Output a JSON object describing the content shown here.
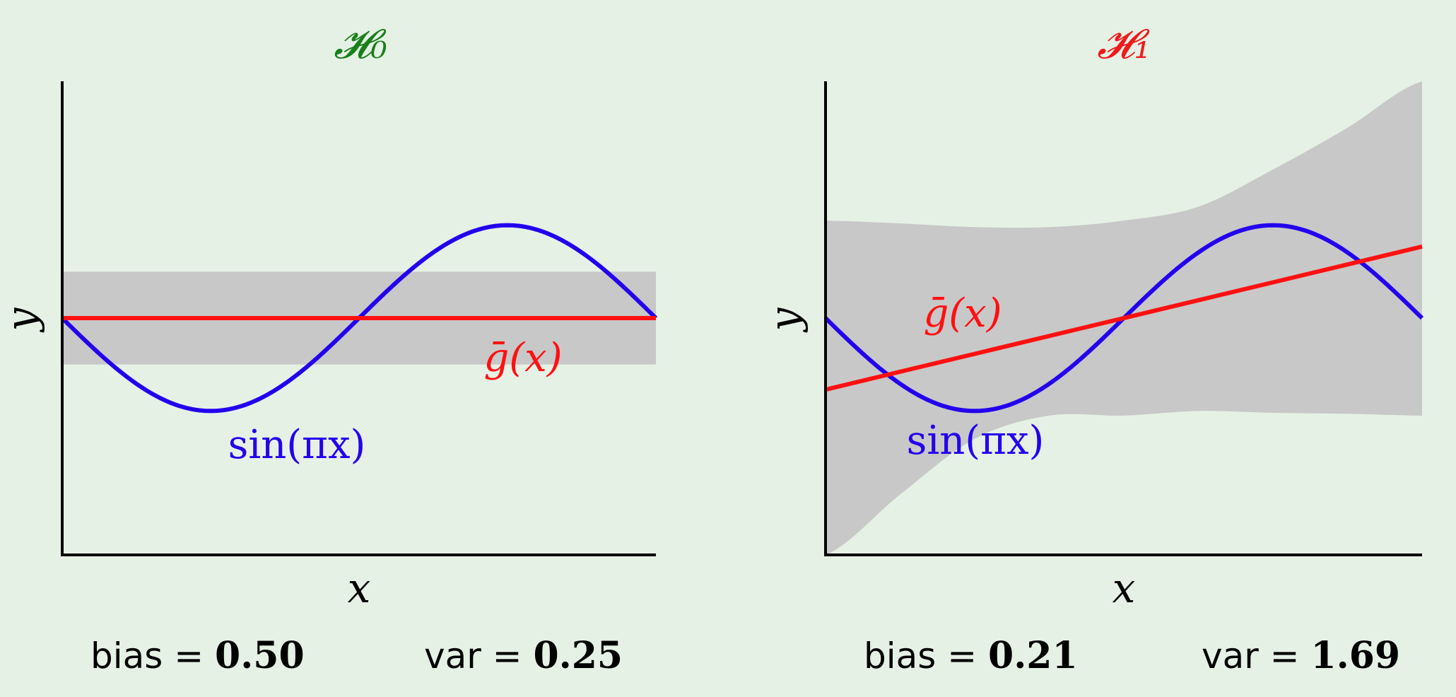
{
  "chart_data": [
    {
      "type": "line",
      "title": "𝓗₀",
      "xlabel": "x",
      "ylabel": "y",
      "xlim": [
        -1,
        1
      ],
      "ylim": [
        -2.55,
        2.55
      ],
      "grid": false,
      "legend": "none",
      "series": [
        {
          "name": "sin(πx)",
          "function": "sin(pi*x)",
          "color": "#2200ee"
        },
        {
          "name": "ḡ(x)",
          "slope": 0,
          "intercept": 0,
          "color": "#ff1010"
        }
      ],
      "band": {
        "upper": [
          0.5,
          0.5
        ],
        "lower": [
          -0.5,
          -0.5
        ],
        "x": [
          -1,
          1
        ],
        "color": "#c8c8c8"
      },
      "stats": {
        "bias_label": "bias = ",
        "bias": "0.50",
        "var_label": "var = ",
        "var": "0.25"
      }
    },
    {
      "type": "line",
      "title": "𝓗₁",
      "xlabel": "x",
      "ylabel": "y",
      "xlim": [
        -1,
        1
      ],
      "ylim": [
        -2.55,
        2.55
      ],
      "grid": false,
      "legend": "none",
      "series": [
        {
          "name": "sin(πx)",
          "function": "sin(pi*x)",
          "color": "#2200ee"
        },
        {
          "name": "ḡ(x)",
          "slope": 0.77,
          "intercept": 0,
          "color": "#ff1010"
        }
      ],
      "band": {
        "x": [
          -1.0,
          -0.75,
          -0.5,
          -0.25,
          0.0,
          0.25,
          0.5,
          0.75,
          1.0
        ],
        "upper": [
          1.05,
          1.02,
          0.98,
          0.98,
          1.05,
          1.2,
          1.6,
          2.05,
          2.55
        ],
        "lower": [
          -2.55,
          -1.9,
          -1.3,
          -1.05,
          -1.05,
          -1.0,
          -1.02,
          -1.03,
          -1.05
        ],
        "color": "#c8c8c8"
      },
      "stats": {
        "bias_label": "bias = ",
        "bias": "0.21",
        "var_label": "var = ",
        "var": "1.69"
      }
    }
  ],
  "colors": {
    "background": "#e6f1e6",
    "title0": "#1a7f1a",
    "title1": "#ee1a1a",
    "sine": "#2200ee",
    "mean": "#ff1010",
    "band": "#c8c8c8",
    "axis": "#000000"
  }
}
